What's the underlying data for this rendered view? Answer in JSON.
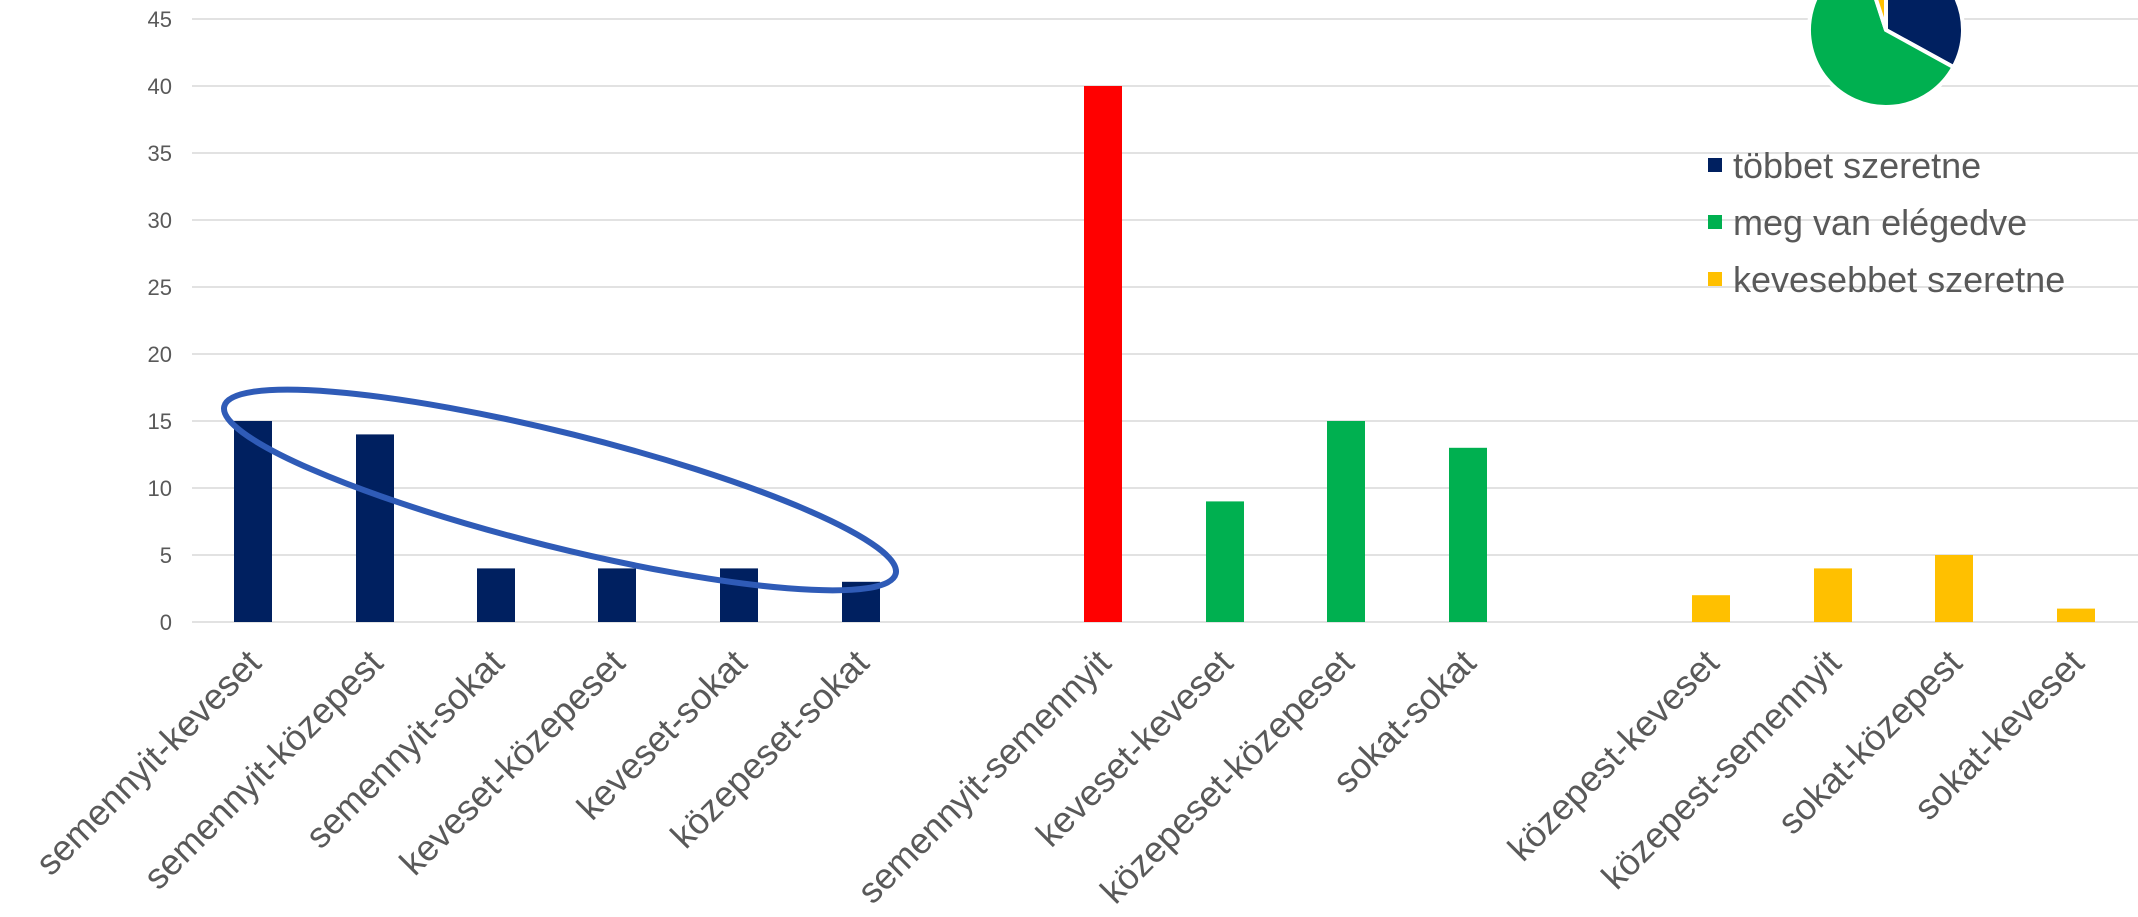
{
  "chart_data": {
    "type": "bar",
    "title": "",
    "xlabel": "",
    "ylabel": "",
    "ylim": [
      0,
      45
    ],
    "yticks": [
      0,
      5,
      10,
      15,
      20,
      25,
      30,
      35,
      40,
      45
    ],
    "grid": true,
    "legend_position": "top-right",
    "categories": [
      "semennyit-keveset",
      "semennyit-közepest",
      "semennyit-sokat",
      "keveset-közepeset",
      "keveset-sokat",
      "közepeset-sokat",
      "semennyit-semennyit",
      "keveset-keveset",
      "közepeset-közepeset",
      "sokat-sokat",
      "közepest-keveset",
      "közepest-semennyit",
      "sokat-közepest",
      "sokat-keveset"
    ],
    "values": [
      15,
      14,
      4,
      4,
      4,
      3,
      40,
      9,
      15,
      13,
      2,
      4,
      5,
      1
    ],
    "bar_colors": [
      "#002060",
      "#002060",
      "#002060",
      "#002060",
      "#002060",
      "#002060",
      "#ff0000",
      "#00b050",
      "#00b050",
      "#00b050",
      "#ffc000",
      "#ffc000",
      "#ffc000",
      "#ffc000"
    ],
    "legend": [
      {
        "label": "többet szeretne",
        "color": "#002060"
      },
      {
        "label": "meg van elégedve",
        "color": "#00b050"
      },
      {
        "label": "kevesebbet szeretne",
        "color": "#ffc000"
      }
    ],
    "inset_pie": {
      "type": "pie",
      "slices": [
        {
          "label": "többet szeretne",
          "share": 0.33,
          "color": "#002060"
        },
        {
          "label": "meg van elégedve",
          "share": 0.62,
          "color": "#00b050"
        },
        {
          "label": "kevesebbet szeretne",
          "share": 0.05,
          "color": "#ffc000"
        }
      ]
    },
    "annotation": {
      "shape": "ellipse",
      "color": "#2f5bb7",
      "encloses": [
        "semennyit-keveset",
        "semennyit-közepest",
        "semennyit-sokat",
        "keveset-közepeset",
        "keveset-sokat",
        "közepeset-sokat"
      ]
    }
  }
}
